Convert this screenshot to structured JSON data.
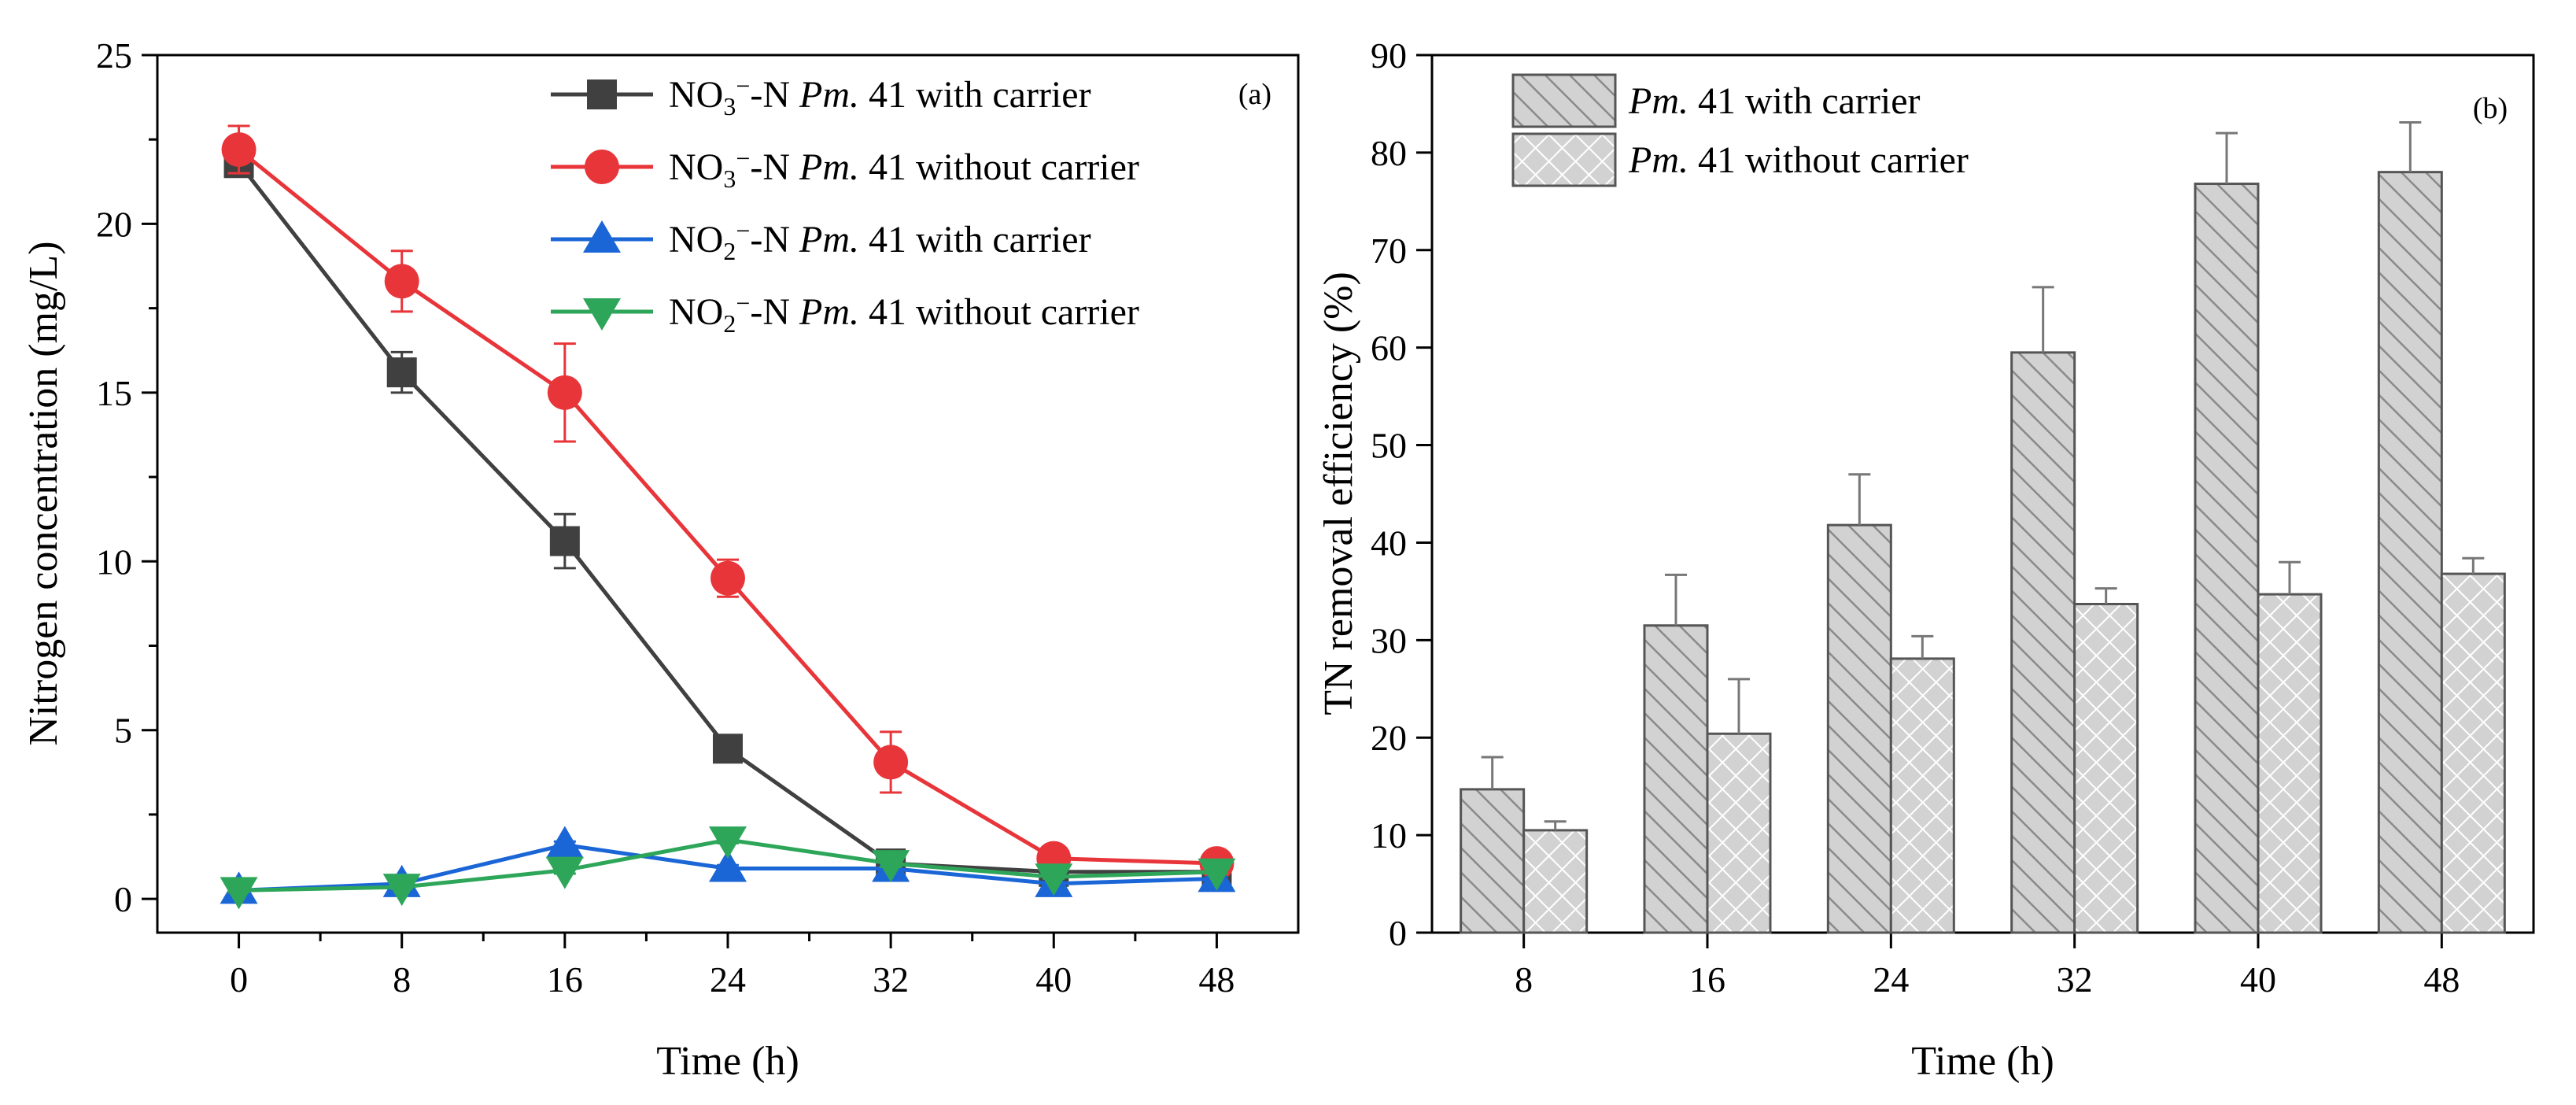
{
  "chart_data": [
    {
      "type": "line",
      "panel_label": "(a)",
      "xlabel": "Time (h)",
      "ylabel": "Nitrogen concentration (mg/L)",
      "xlim": [
        -4,
        52
      ],
      "ylim": [
        -1,
        25
      ],
      "x": [
        0,
        8,
        16,
        24,
        32,
        40,
        48
      ],
      "x_ticks": [
        "0",
        "8",
        "16",
        "24",
        "32",
        "40",
        "48"
      ],
      "y_ticks": [
        "0",
        "5",
        "10",
        "15",
        "20",
        "25"
      ],
      "grid": false,
      "legend_position": "top-right",
      "series": [
        {
          "name_prefix": "NO",
          "name_sub": "3",
          "name_sup": "−",
          "name_mid": "-N ",
          "name_italic": "Pm.",
          "name_suffix": " 41 with carrier",
          "color": "#404040",
          "marker": "square",
          "values": [
            21.8,
            15.6,
            10.6,
            4.45,
            1.05,
            0.8,
            0.8
          ],
          "errors": [
            0.2,
            0.6,
            0.8,
            0.4,
            0.15,
            0.1,
            0.1
          ]
        },
        {
          "name_prefix": "NO",
          "name_sub": "3",
          "name_sup": "−",
          "name_mid": "-N ",
          "name_italic": "Pm.",
          "name_suffix": " 41 without carrier",
          "color": "#e8353a",
          "marker": "circle",
          "values": [
            22.2,
            18.3,
            15.0,
            9.5,
            4.05,
            1.2,
            1.05
          ],
          "errors": [
            0.7,
            0.9,
            1.45,
            0.55,
            0.9,
            0.1,
            0.1
          ]
        },
        {
          "name_prefix": "NO",
          "name_sub": "2",
          "name_sup": "−",
          "name_mid": "-N ",
          "name_italic": "Pm.",
          "name_suffix": " 41 with carrier",
          "color": "#1b66d6",
          "marker": "triangle-up",
          "values": [
            0.25,
            0.45,
            1.6,
            0.9,
            0.9,
            0.45,
            0.6
          ],
          "errors": [
            0.05,
            0.05,
            0.1,
            0.1,
            0.1,
            0.05,
            0.05
          ]
        },
        {
          "name_prefix": "NO",
          "name_sub": "2",
          "name_sup": "−",
          "name_mid": "-N ",
          "name_italic": "Pm.",
          "name_suffix": " 41 without carrier",
          "color": "#2ea65a",
          "marker": "triangle-down",
          "values": [
            0.25,
            0.35,
            0.85,
            1.75,
            1.05,
            0.65,
            0.8
          ],
          "errors": [
            0.05,
            0.05,
            0.1,
            0.1,
            0.1,
            0.05,
            0.05
          ]
        }
      ]
    },
    {
      "type": "bar",
      "panel_label": "(b)",
      "xlabel": "Time (h)",
      "ylabel": "TN removal efficiency (%)",
      "ylim": [
        0,
        90
      ],
      "categories": [
        "8",
        "16",
        "24",
        "32",
        "40",
        "48"
      ],
      "y_ticks": [
        "0",
        "10",
        "20",
        "30",
        "40",
        "50",
        "60",
        "70",
        "80",
        "90"
      ],
      "grid": false,
      "legend_position": "top-left",
      "series": [
        {
          "name_italic": "Pm.",
          "name_suffix": " 41 with carrier",
          "pattern": "diagonal-hatch",
          "values": [
            14.7,
            31.5,
            41.8,
            59.5,
            76.8,
            78.0
          ],
          "errors": [
            3.3,
            5.2,
            5.2,
            6.7,
            5.2,
            5.1
          ]
        },
        {
          "name_italic": "Pm.",
          "name_suffix": " 41 without carrier",
          "pattern": "cross-hatch",
          "values": [
            10.5,
            20.4,
            28.1,
            33.7,
            34.7,
            36.8
          ],
          "errors": [
            0.9,
            5.6,
            2.3,
            1.6,
            3.3,
            1.6
          ]
        }
      ]
    }
  ]
}
